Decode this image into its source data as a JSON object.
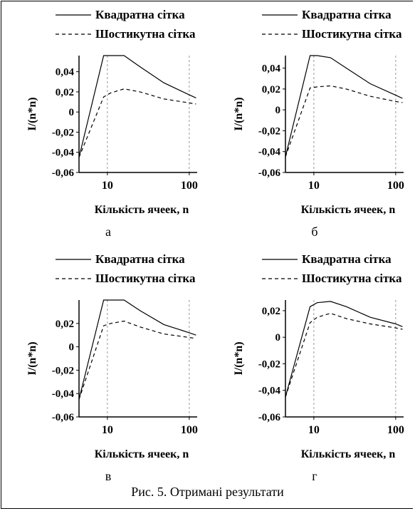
{
  "legend": {
    "square": "Квадратна сітка",
    "hex": "Шостикутна сітка"
  },
  "ylabel": "I/(n*n)",
  "xlabel": "Кількість ячеек, n",
  "caption": "Рис. 5.  Отримані результати",
  "colors": {
    "line": "#000000",
    "grid": "#999999"
  },
  "chart_data": [
    {
      "type": "line",
      "panel_label": "а",
      "xscale": "log",
      "xlim": [
        4.5,
        125
      ],
      "ylim": [
        -0.06,
        0.056
      ],
      "xticks": [
        10,
        100
      ],
      "xticklabels": [
        "10",
        "100"
      ],
      "yticks": [
        0.04,
        0.02,
        0,
        -0.02,
        -0.04,
        -0.06
      ],
      "yticklabels": [
        "0,04",
        "0,02",
        "0",
        "-0,02",
        "-0,04",
        "-0,06"
      ],
      "xlabel": "Кількість ячеек, n",
      "ylabel": "I/(n*n)",
      "series": [
        {
          "name": "Квадратна сітка",
          "dash": "solid",
          "x": [
            4.5,
            9,
            11,
            16,
            25,
            49,
            100,
            121
          ],
          "y": [
            -0.045,
            0.056,
            0.056,
            0.056,
            0.045,
            0.029,
            0.017,
            0.014
          ]
        },
        {
          "name": "Шостикутна сітка",
          "dash": "dashed",
          "x": [
            4.5,
            9,
            11,
            16,
            25,
            49,
            100,
            121
          ],
          "y": [
            -0.045,
            0.015,
            0.019,
            0.023,
            0.02,
            0.013,
            0.009,
            0.008
          ]
        }
      ]
    },
    {
      "type": "line",
      "panel_label": "б",
      "xscale": "log",
      "xlim": [
        4.5,
        125
      ],
      "ylim": [
        -0.06,
        0.052
      ],
      "xticks": [
        10,
        100
      ],
      "xticklabels": [
        "10",
        "100"
      ],
      "yticks": [
        0.04,
        0.02,
        0,
        -0.02,
        -0.04,
        -0.06
      ],
      "yticklabels": [
        "0,04",
        "0,02",
        "0",
        "-0,02",
        "-0,04",
        "-0,06"
      ],
      "xlabel": "Кількість ячеек, n",
      "ylabel": "I/(n*n)",
      "series": [
        {
          "name": "Квадратна сітка",
          "dash": "solid",
          "x": [
            4.5,
            9,
            11,
            16,
            25,
            49,
            100,
            121
          ],
          "y": [
            -0.045,
            0.052,
            0.052,
            0.05,
            0.04,
            0.025,
            0.014,
            0.011
          ]
        },
        {
          "name": "Шостикутна сітка",
          "dash": "dashed",
          "x": [
            4.5,
            9,
            11,
            16,
            25,
            49,
            100,
            121
          ],
          "y": [
            -0.045,
            0.021,
            0.022,
            0.023,
            0.02,
            0.013,
            0.008,
            0.007
          ]
        }
      ]
    },
    {
      "type": "line",
      "panel_label": "в",
      "xscale": "log",
      "xlim": [
        4.5,
        125
      ],
      "ylim": [
        -0.06,
        0.04
      ],
      "xticks": [
        10,
        100
      ],
      "xticklabels": [
        "10",
        "100"
      ],
      "yticks": [
        0.02,
        0,
        -0.02,
        -0.04,
        -0.06
      ],
      "yticklabels": [
        "0,02",
        "0",
        "-0,02",
        "-0,04",
        "-0,06"
      ],
      "xlabel": "Кількість ячеек, n",
      "ylabel": "I/(n*n)",
      "series": [
        {
          "name": "Квадратна сітка",
          "dash": "solid",
          "x": [
            4.5,
            9,
            11,
            16,
            25,
            49,
            100,
            121
          ],
          "y": [
            -0.045,
            0.04,
            0.04,
            0.04,
            0.031,
            0.019,
            0.012,
            0.01
          ]
        },
        {
          "name": "Шостикутна сітка",
          "dash": "dashed",
          "x": [
            4.5,
            9,
            11,
            16,
            25,
            49,
            100,
            121
          ],
          "y": [
            -0.045,
            0.018,
            0.02,
            0.022,
            0.017,
            0.011,
            0.008,
            0.007
          ]
        }
      ]
    },
    {
      "type": "line",
      "panel_label": "г",
      "xscale": "log",
      "xlim": [
        4.5,
        125
      ],
      "ylim": [
        -0.06,
        0.028
      ],
      "xticks": [
        10,
        100
      ],
      "xticklabels": [
        "10",
        "100"
      ],
      "yticks": [
        0.02,
        0,
        -0.02,
        -0.04,
        -0.06
      ],
      "yticklabels": [
        "0,02",
        "0",
        "-0,02",
        "-0,04",
        "-0,06"
      ],
      "xlabel": "Кількість ячеек, n",
      "ylabel": "I/(n*n)",
      "series": [
        {
          "name": "Квадратна сітка",
          "dash": "solid",
          "x": [
            4.5,
            9,
            11,
            16,
            25,
            49,
            100,
            121
          ],
          "y": [
            -0.045,
            0.023,
            0.026,
            0.027,
            0.023,
            0.015,
            0.01,
            0.008
          ]
        },
        {
          "name": "Шостикутна сітка",
          "dash": "dashed",
          "x": [
            4.5,
            9,
            11,
            16,
            25,
            49,
            100,
            121
          ],
          "y": [
            -0.045,
            0.011,
            0.015,
            0.018,
            0.014,
            0.01,
            0.007,
            0.006
          ]
        }
      ]
    }
  ]
}
